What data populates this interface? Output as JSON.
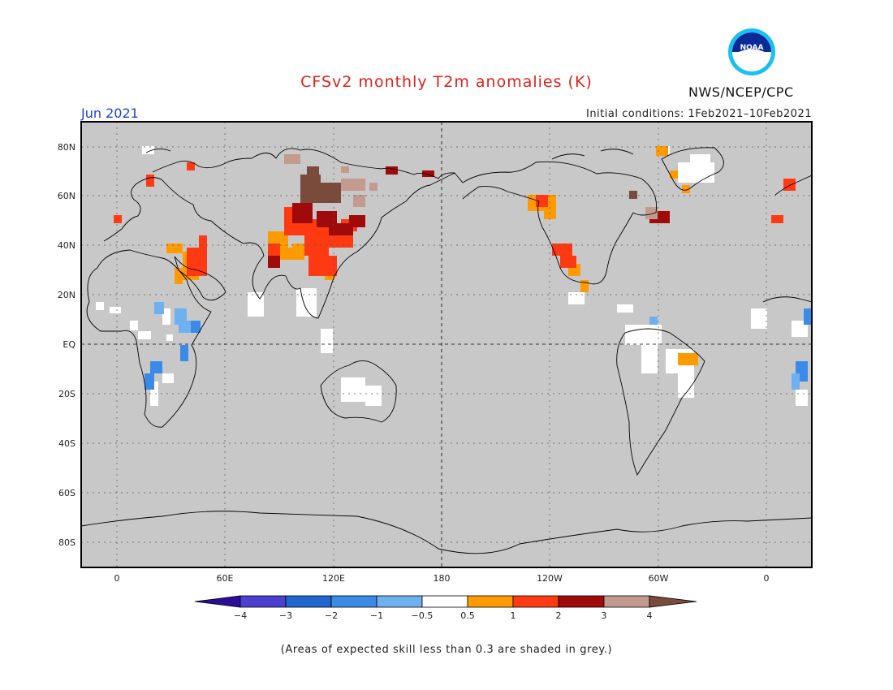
{
  "title": "CFSv2 monthly T2m anomalies (K)",
  "month_label": "Jun 2021",
  "initial_conditions": "Initial conditions: 1Feb2021–10Feb2021",
  "org_label": "NWS/NCEP/CPC",
  "logo_text": "NOAA",
  "footnote": "(Areas of expected skill less than 0.3 are shaded in grey.)",
  "colors": {
    "background_grey": "#c8c8c8",
    "no_anomaly": "#ffffff",
    "title": "#e0201a",
    "month": "#2040d0"
  },
  "map": {
    "lat_labels": [
      "80N",
      "60N",
      "40N",
      "20N",
      "EQ",
      "20S",
      "40S",
      "60S",
      "80S"
    ],
    "lon_labels": [
      "0",
      "60E",
      "120E",
      "180",
      "120W",
      "60W",
      "0"
    ]
  },
  "colorbar": {
    "labels": [
      "−4",
      "−3",
      "−2",
      "−1",
      "−0.5",
      "0.5",
      "1",
      "2",
      "3",
      "4"
    ],
    "colors": [
      "#2a0e9a",
      "#4a3fd0",
      "#2066d0",
      "#3a8ae8",
      "#6fb0f0",
      "#ffffff",
      "#ff9a00",
      "#ff3a12",
      "#a00a0a",
      "#c29a8e",
      "#7a4a3a"
    ]
  },
  "anomaly_regions": [
    {
      "region": "central Asia / Siberia",
      "color": "#7a4a3a"
    },
    {
      "region": "northern China",
      "color": "#a00a0a"
    },
    {
      "region": "Mongolia",
      "color": "#ff3a12"
    },
    {
      "region": "western China",
      "color": "#ff9a00"
    },
    {
      "region": "Middle East",
      "color": "#ff3a12"
    },
    {
      "region": "western North America",
      "color": "#ff3a12"
    },
    {
      "region": "Greenland",
      "color": "#ff9a00"
    },
    {
      "region": "eastern Brazil",
      "color": "#ff9a00"
    },
    {
      "region": "southern Africa",
      "color": "#3a8ae8"
    }
  ]
}
